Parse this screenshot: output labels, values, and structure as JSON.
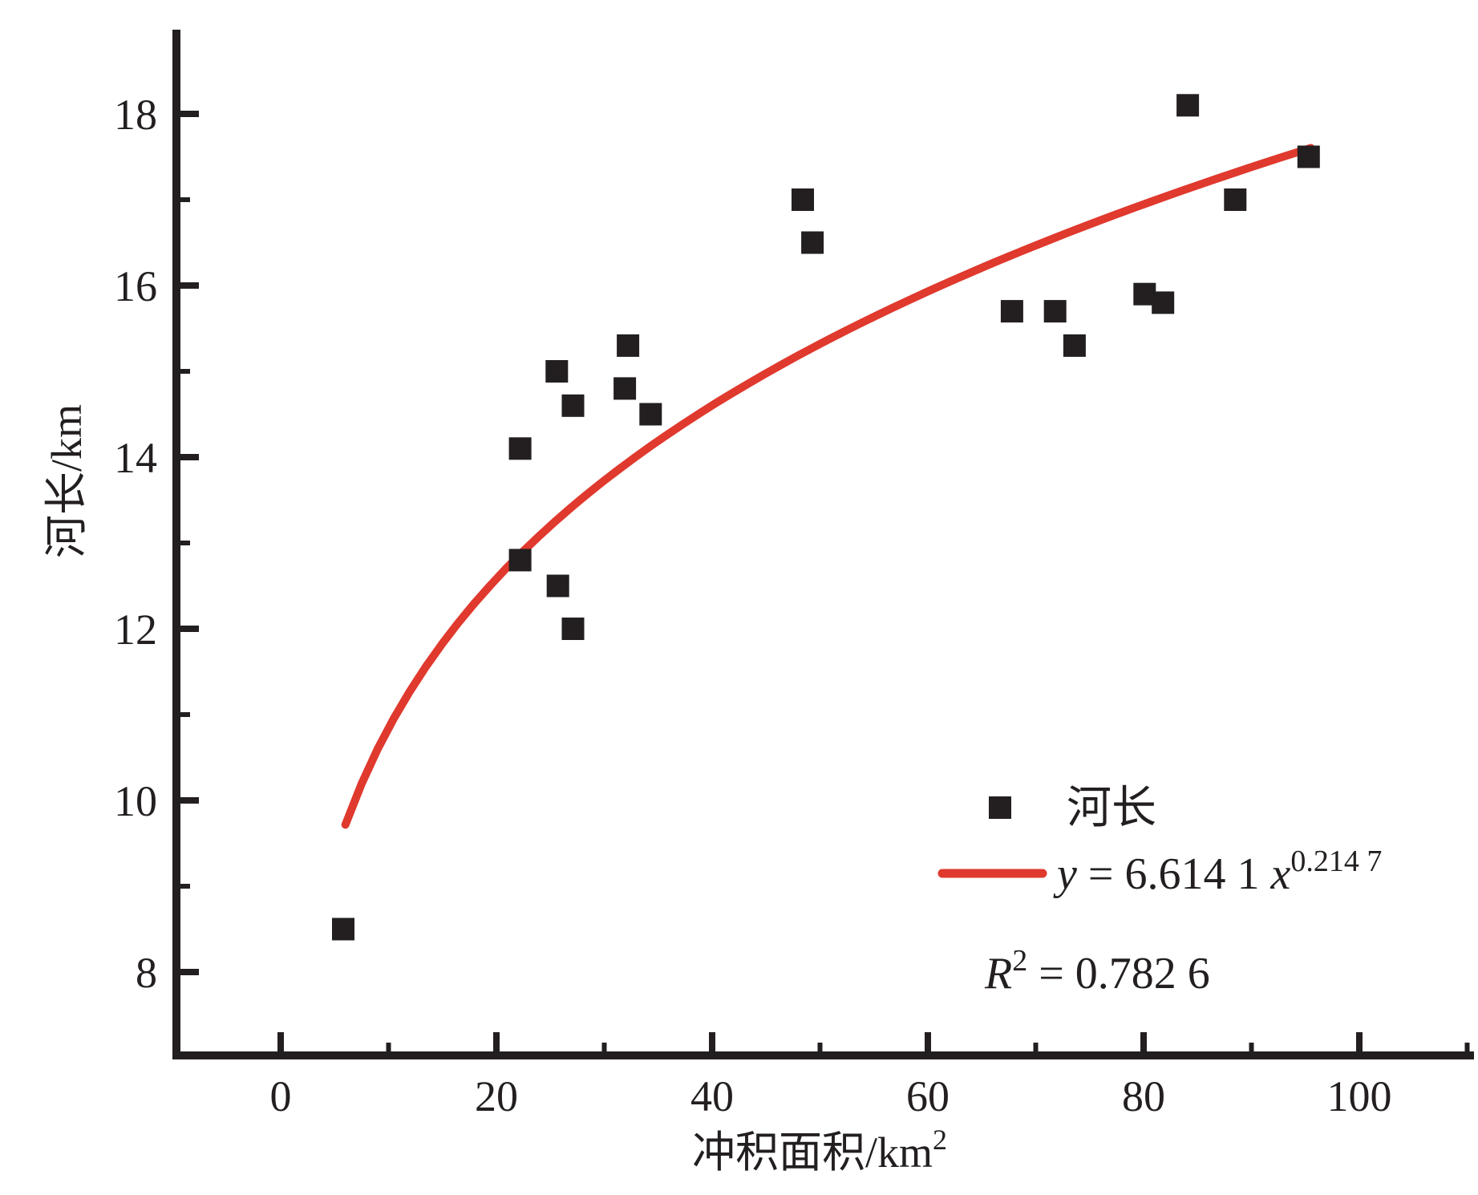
{
  "chart_data": {
    "type": "scatter",
    "title": "",
    "xlabel": "冲积面积/km²",
    "xlabel_base": "冲积面积/km",
    "xlabel_sup": "2",
    "ylabel": "河长/km",
    "xlim": [
      -10,
      111
    ],
    "ylim": [
      7,
      19
    ],
    "x_ticks": [
      0,
      20,
      40,
      60,
      80,
      100
    ],
    "x_minor_ticks": [
      10,
      30,
      50,
      70,
      90,
      110
    ],
    "y_ticks": [
      8,
      10,
      12,
      14,
      16,
      18
    ],
    "y_minor_ticks": [
      9,
      11,
      13,
      15,
      17
    ],
    "grid": false,
    "legend_position": "lower right",
    "series": [
      {
        "name": "河长",
        "marker": "square",
        "color": "#231f20",
        "points": [
          [
            5.8,
            8.5
          ],
          [
            22.2,
            14.1
          ],
          [
            22.2,
            12.8
          ],
          [
            25.6,
            15.0
          ],
          [
            25.7,
            12.5
          ],
          [
            27.1,
            14.6
          ],
          [
            27.1,
            12.0
          ],
          [
            32.2,
            15.3
          ],
          [
            31.9,
            14.8
          ],
          [
            34.3,
            14.5
          ],
          [
            48.4,
            17.0
          ],
          [
            49.3,
            16.5
          ],
          [
            67.8,
            15.7
          ],
          [
            71.8,
            15.7
          ],
          [
            73.6,
            15.3
          ],
          [
            80.1,
            15.9
          ],
          [
            81.8,
            15.8
          ],
          [
            84.1,
            18.1
          ],
          [
            88.5,
            17.0
          ],
          [
            95.3,
            17.5
          ]
        ]
      }
    ],
    "fit": {
      "equation": "y = 6.614 1 x^0.214 7",
      "eq_var_y": "y",
      "eq_mid": " = 6.614 1 ",
      "eq_var_x": "x",
      "eq_exponent": "0.214 7",
      "a": 6.6141,
      "b": 0.2147,
      "x_start": 6.0,
      "x_end": 95.5,
      "color": "#e0392e",
      "r_squared": "R² = 0.782 6",
      "r2_base": "R",
      "r2_sup": "2",
      "r2_rest": " = 0.782 6"
    },
    "legend": {
      "marker_label": "河长"
    },
    "colors": {
      "axis": "#231f20",
      "marker": "#231f20",
      "fit_line": "#e0392e",
      "background": "#ffffff"
    }
  }
}
